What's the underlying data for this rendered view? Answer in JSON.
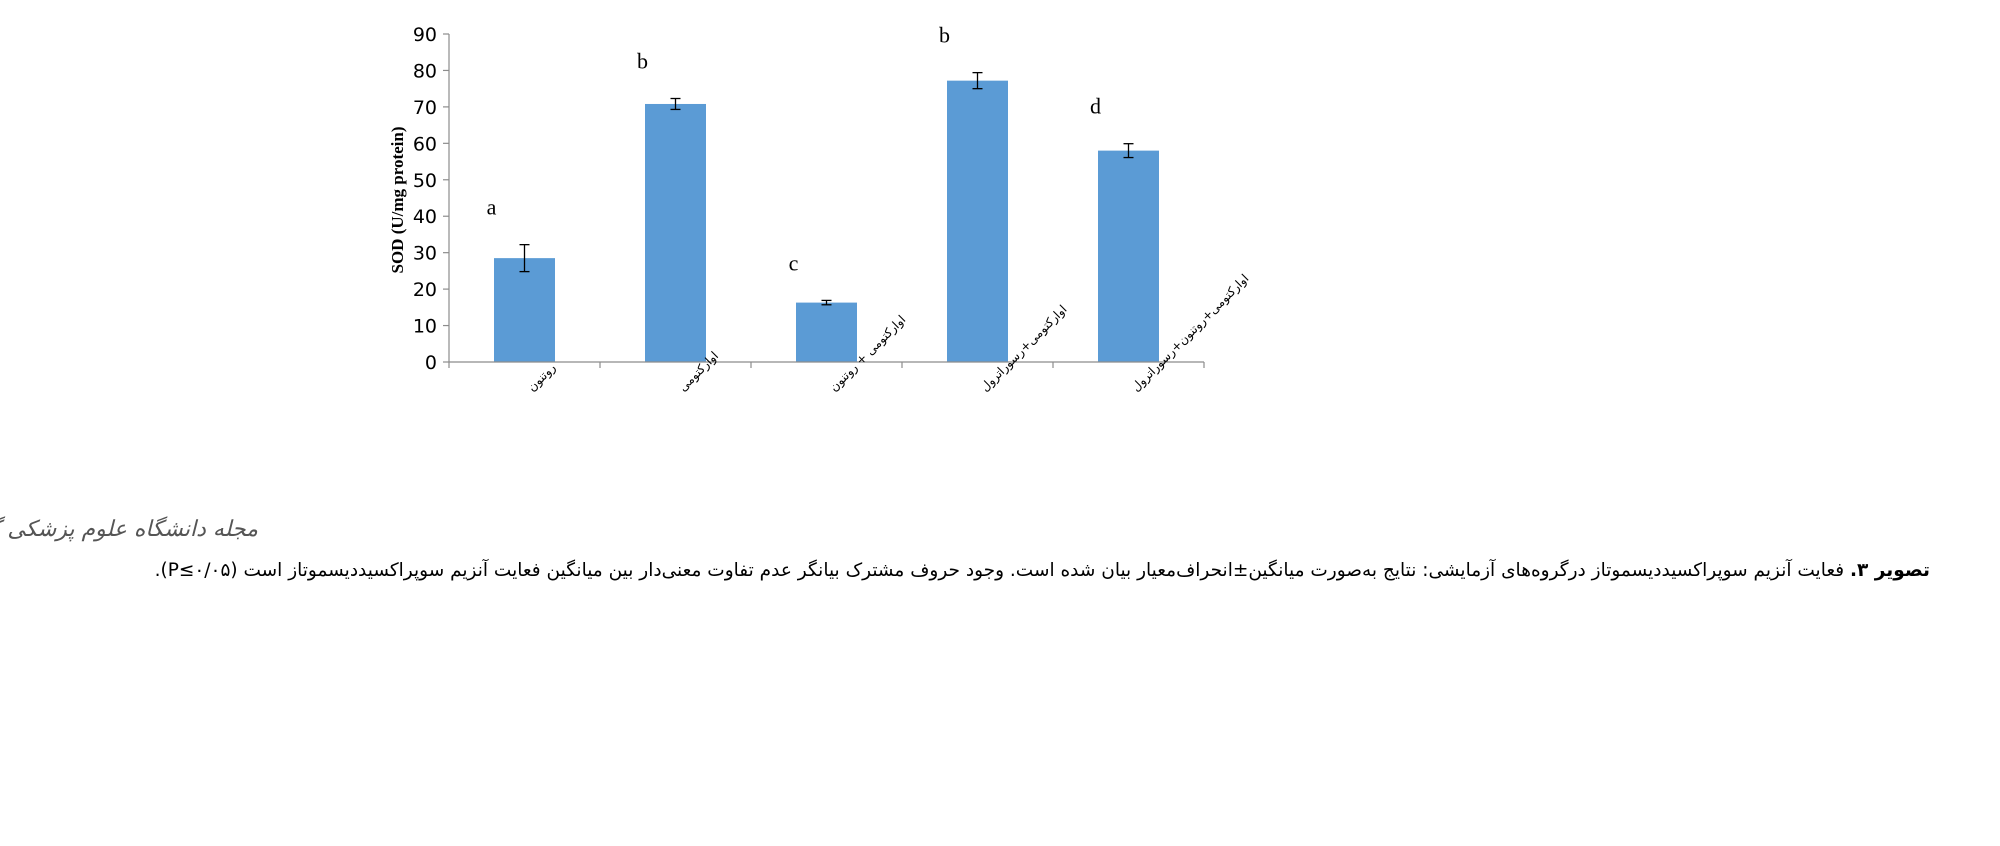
{
  "chart_data": {
    "type": "bar",
    "categories": [
      "روتنون",
      "اوارکتومی",
      "اوارکتومی + روتنون",
      "اوارکتومی+رسوراترول",
      "اوارکتومی+روتنون+رسوراترول"
    ],
    "values": [
      28.5,
      70.8,
      16.3,
      77.2,
      58.0
    ],
    "errors": [
      3.7,
      1.5,
      0.6,
      2.2,
      1.9
    ],
    "significance_letters": [
      "a",
      "b",
      "c",
      "b",
      "d"
    ],
    "title": "",
    "xlabel": "",
    "ylabel": "SOD (U/mg protein)",
    "ylim": [
      0,
      90
    ],
    "yticks": [
      0,
      10,
      20,
      30,
      40,
      50,
      60,
      70,
      80,
      90
    ],
    "bar_color": "#5b9bd5",
    "grid": false,
    "legend": "none"
  },
  "logo": {
    "text": "مجله دانشگاه علوم پزشکی گیلان"
  },
  "caption": {
    "label": "تصویر ۳.",
    "text": " فعایت آنزیم سوپراکسیددیسموتاز درگروه‌های آزمایشی: نتایج به‌صورت میانگین±انحراف‌معیار بیان شده است. وجود حروف مشترک بیانگر عدم تفاوت معنی‌دار بین میانگین فعایت آنزیم سوپراکسیددیسموتاز است (P≤۰/۰۵)."
  }
}
